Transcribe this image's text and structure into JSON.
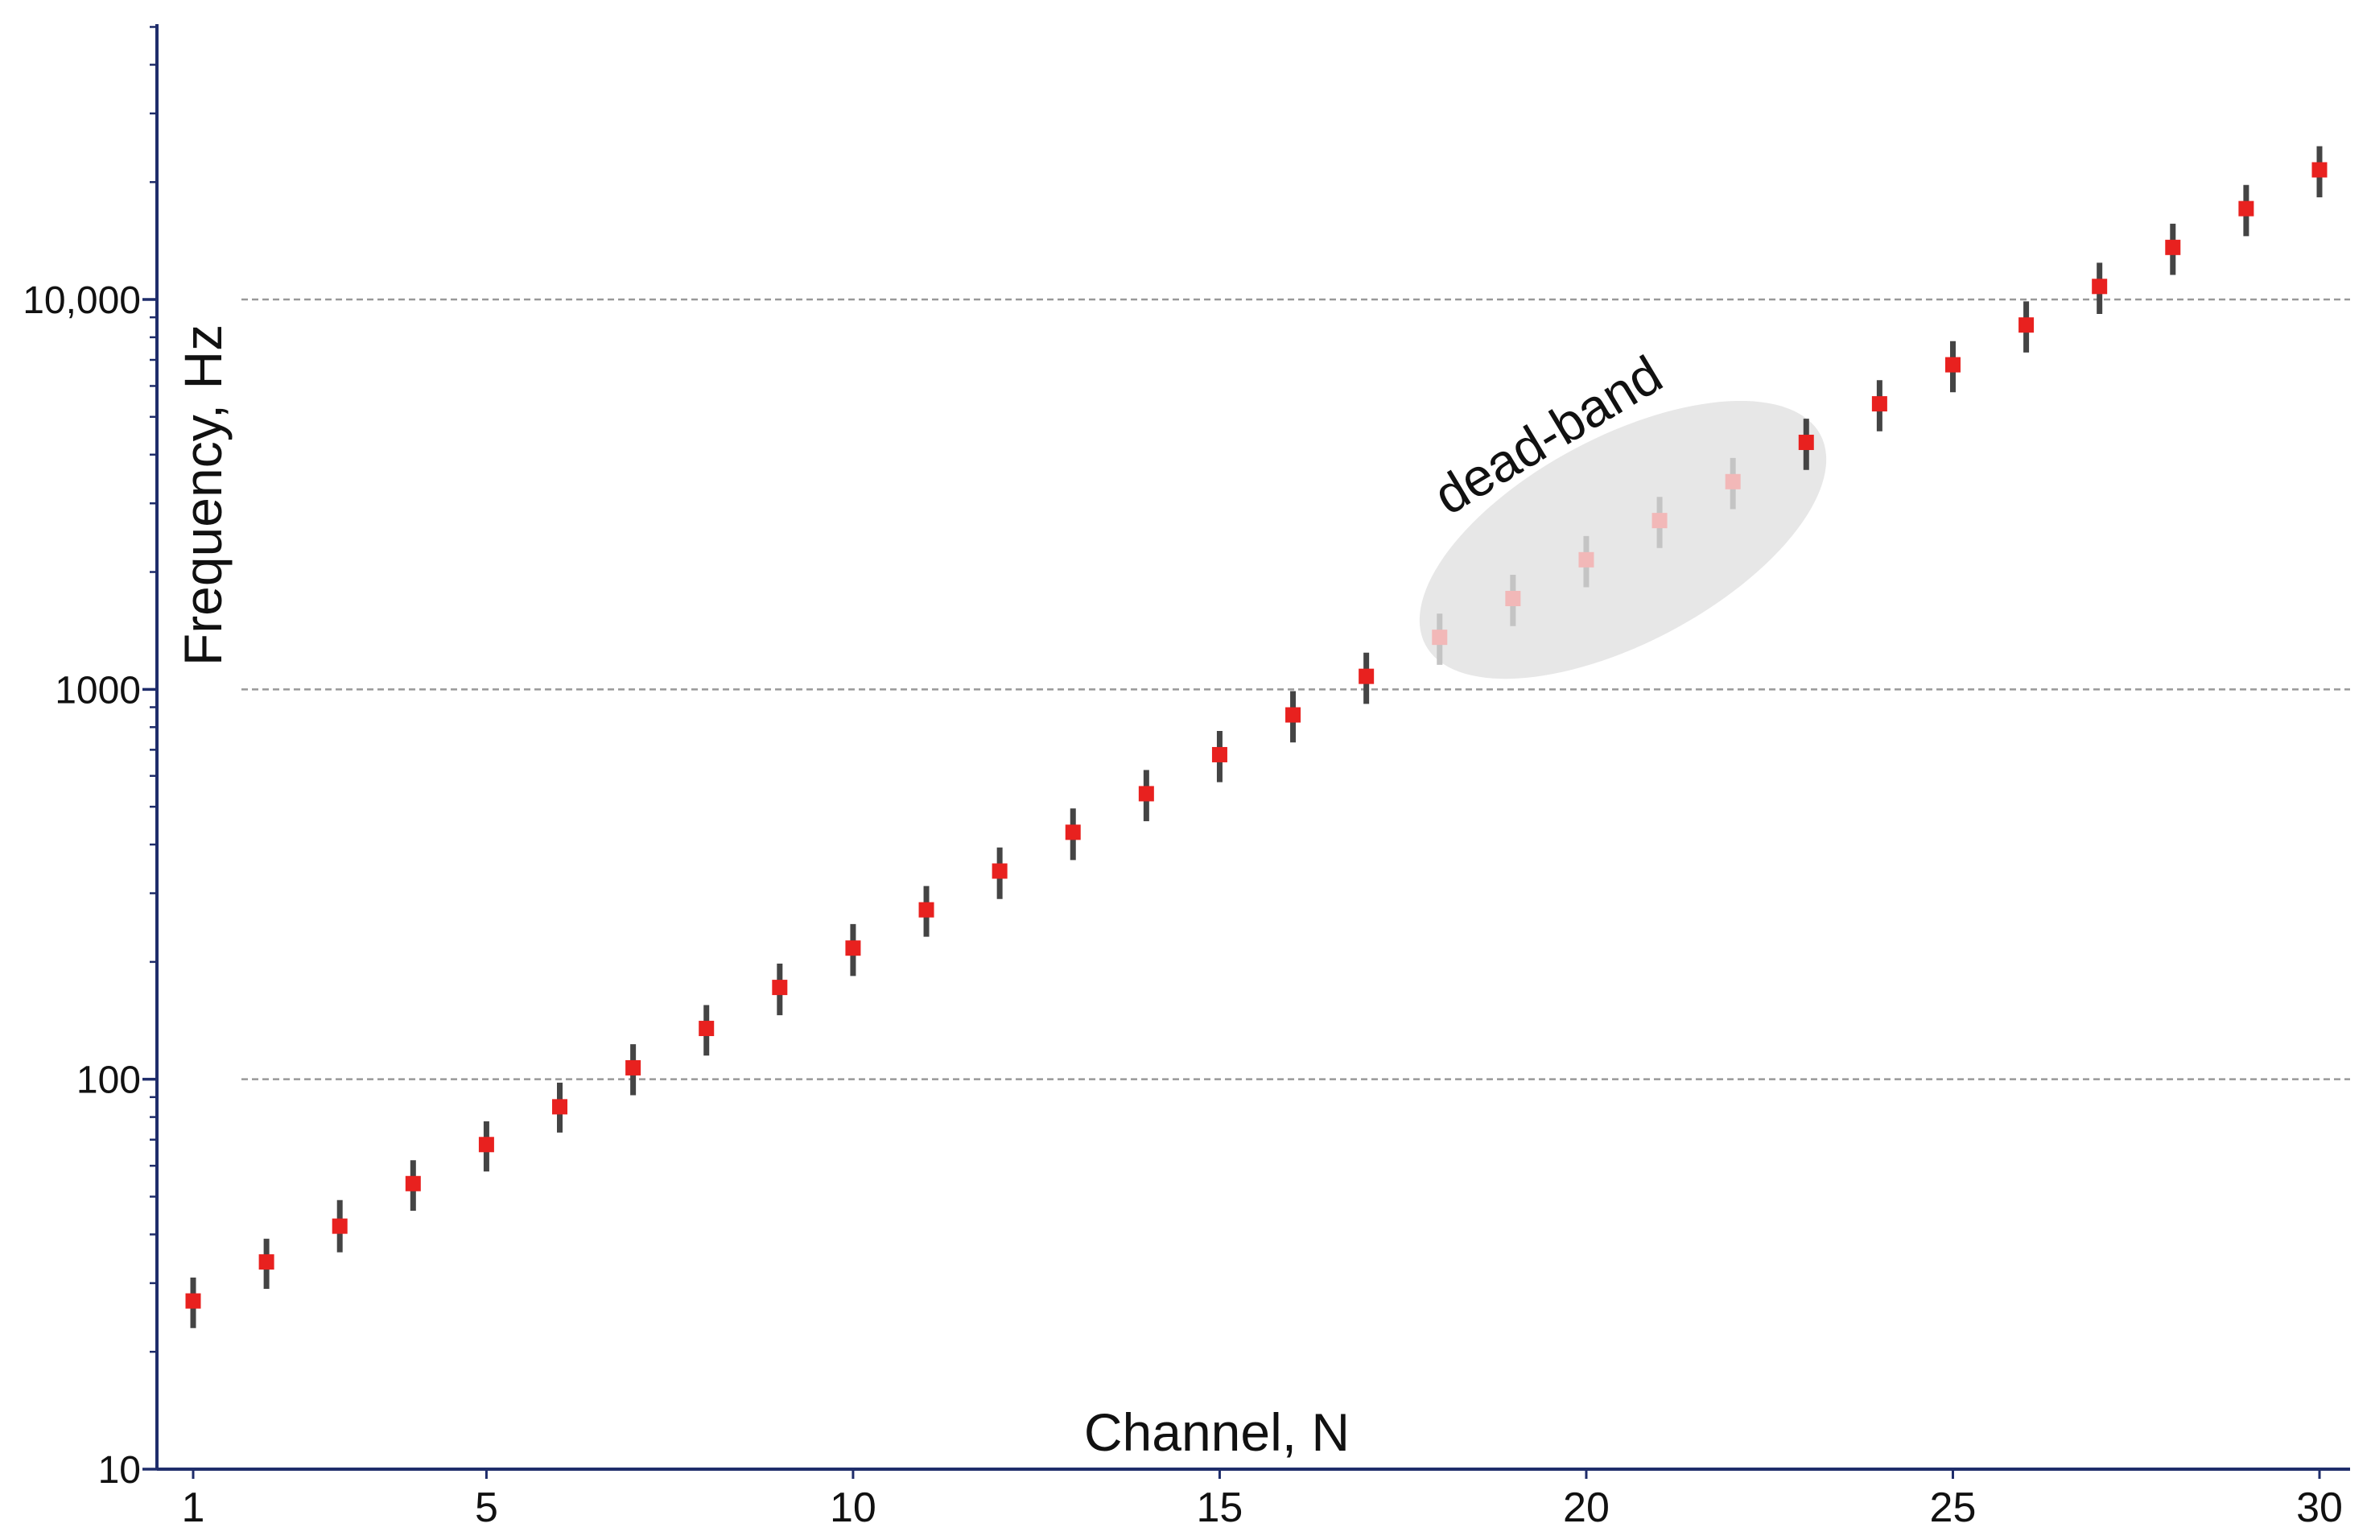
{
  "chart_data": {
    "type": "scatter",
    "title": "",
    "xlabel": "Channel, N",
    "ylabel": "Frequency, Hz",
    "x_scale": "linear",
    "y_scale": "log",
    "xlim": [
      0.5,
      30.5
    ],
    "ylim": [
      10,
      50000
    ],
    "x_ticks": [
      1,
      5,
      10,
      15,
      20,
      25,
      30
    ],
    "x_tick_labels": [
      "1",
      "5",
      "10",
      "15",
      "20",
      "25",
      "30"
    ],
    "y_ticks": [
      10,
      100,
      1000,
      10000
    ],
    "y_tick_labels": [
      "10",
      "100",
      "1000",
      "10,000"
    ],
    "grid": "horizontal dashed at major y ticks",
    "legend": "none",
    "colors": {
      "marker": "#e8211f",
      "marker_dead": "#f2b8b8",
      "errorbar": "#444444",
      "errorbar_dead": "#c4c4c4",
      "axis": "#1f2d6b",
      "grid": "#999999",
      "dead_band_fill": "#d9d9d9"
    },
    "points": [
      {
        "x": 1,
        "y": 27,
        "lo": 23,
        "hi": 31,
        "dead": false
      },
      {
        "x": 2,
        "y": 34,
        "lo": 29,
        "hi": 39,
        "dead": false
      },
      {
        "x": 3,
        "y": 42,
        "lo": 36,
        "hi": 49,
        "dead": false
      },
      {
        "x": 4,
        "y": 54,
        "lo": 46,
        "hi": 62,
        "dead": false
      },
      {
        "x": 5,
        "y": 68,
        "lo": 58,
        "hi": 78,
        "dead": false
      },
      {
        "x": 6,
        "y": 85,
        "lo": 73,
        "hi": 98,
        "dead": false
      },
      {
        "x": 7,
        "y": 107,
        "lo": 91,
        "hi": 123,
        "dead": false
      },
      {
        "x": 8,
        "y": 135,
        "lo": 115,
        "hi": 155,
        "dead": false
      },
      {
        "x": 9,
        "y": 172,
        "lo": 146,
        "hi": 198,
        "dead": false
      },
      {
        "x": 10,
        "y": 217,
        "lo": 184,
        "hi": 250,
        "dead": false
      },
      {
        "x": 11,
        "y": 272,
        "lo": 232,
        "hi": 313,
        "dead": false
      },
      {
        "x": 12,
        "y": 342,
        "lo": 290,
        "hi": 393,
        "dead": false
      },
      {
        "x": 13,
        "y": 430,
        "lo": 365,
        "hi": 495,
        "dead": false
      },
      {
        "x": 14,
        "y": 540,
        "lo": 459,
        "hi": 621,
        "dead": false
      },
      {
        "x": 15,
        "y": 680,
        "lo": 578,
        "hi": 782,
        "dead": false
      },
      {
        "x": 16,
        "y": 860,
        "lo": 731,
        "hi": 990,
        "dead": false
      },
      {
        "x": 17,
        "y": 1080,
        "lo": 918,
        "hi": 1242,
        "dead": false
      },
      {
        "x": 18,
        "y": 1360,
        "lo": 1156,
        "hi": 1564,
        "dead": true
      },
      {
        "x": 19,
        "y": 1710,
        "lo": 1453,
        "hi": 1967,
        "dead": true
      },
      {
        "x": 20,
        "y": 2150,
        "lo": 1828,
        "hi": 2473,
        "dead": true
      },
      {
        "x": 21,
        "y": 2710,
        "lo": 2304,
        "hi": 3117,
        "dead": true
      },
      {
        "x": 22,
        "y": 3410,
        "lo": 2899,
        "hi": 3922,
        "dead": true
      },
      {
        "x": 23,
        "y": 4300,
        "lo": 3655,
        "hi": 4945,
        "dead": false
      },
      {
        "x": 24,
        "y": 5400,
        "lo": 4590,
        "hi": 6210,
        "dead": false
      },
      {
        "x": 25,
        "y": 6800,
        "lo": 5780,
        "hi": 7820,
        "dead": false
      },
      {
        "x": 26,
        "y": 8600,
        "lo": 7310,
        "hi": 9890,
        "dead": false
      },
      {
        "x": 27,
        "y": 10800,
        "lo": 9180,
        "hi": 12420,
        "dead": false
      },
      {
        "x": 28,
        "y": 13600,
        "lo": 11560,
        "hi": 15640,
        "dead": false
      },
      {
        "x": 29,
        "y": 17100,
        "lo": 14535,
        "hi": 19665,
        "dead": false
      },
      {
        "x": 30,
        "y": 21500,
        "lo": 18275,
        "hi": 24725,
        "dead": false
      }
    ],
    "annotations": [
      {
        "text": "dead-band",
        "x_range": [
          18,
          23
        ]
      }
    ]
  }
}
